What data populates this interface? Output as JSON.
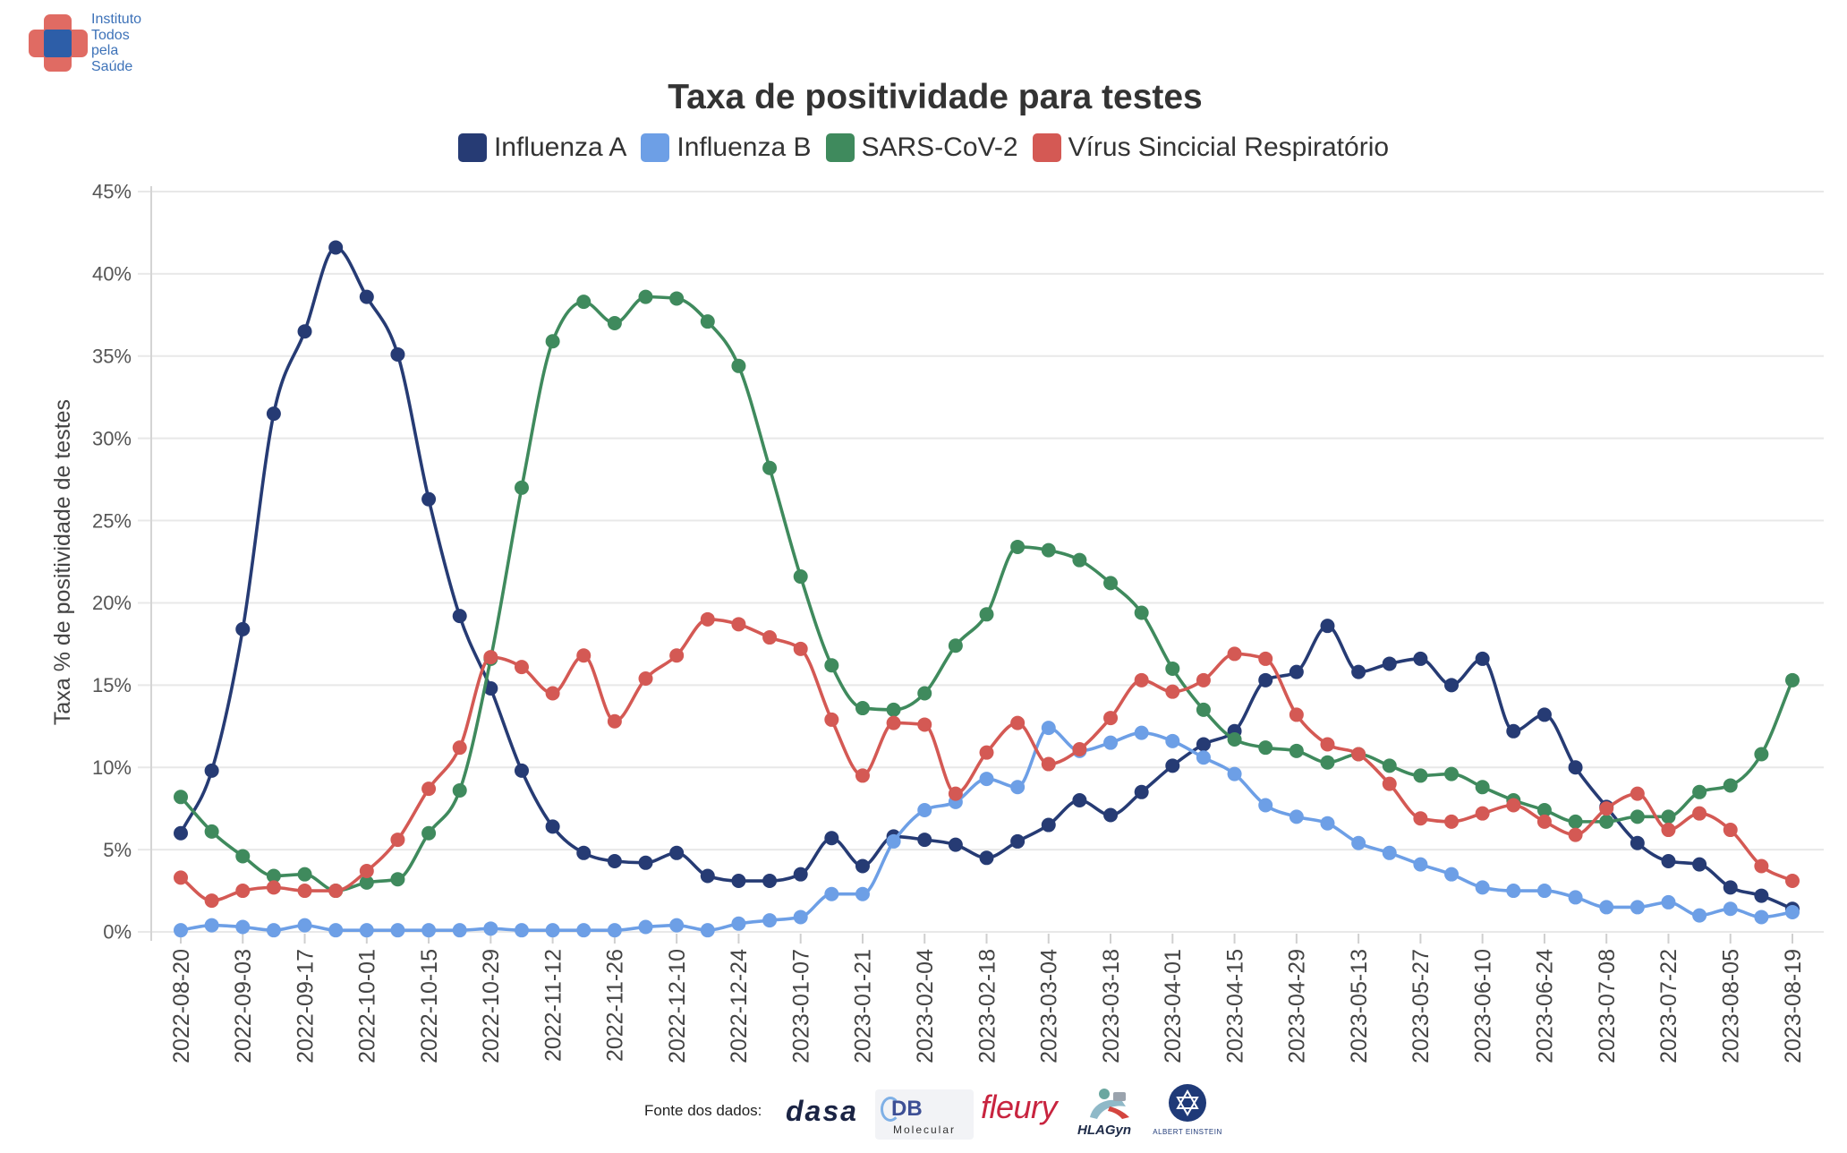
{
  "logo": {
    "lines": [
      "Instituto",
      "Todos",
      "pela",
      "Saúde"
    ],
    "colors": {
      "cross": "#e06b63",
      "center": "#2d5ea8",
      "text": "#3d72b8"
    }
  },
  "chart_data": {
    "type": "line",
    "title": "Taxa de positividade para testes",
    "xlabel": "",
    "ylabel": "Taxa % de positividade de testes",
    "ylim": [
      0,
      45
    ],
    "y_ticks": [
      0,
      5,
      10,
      15,
      20,
      25,
      30,
      35,
      40,
      45
    ],
    "y_tick_labels": [
      "0%",
      "5%",
      "10%",
      "15%",
      "20%",
      "25%",
      "30%",
      "35%",
      "40%",
      "45%"
    ],
    "grid": true,
    "legend_position": "top",
    "x": [
      "2022-08-20",
      "2022-08-27",
      "2022-09-03",
      "2022-09-10",
      "2022-09-17",
      "2022-09-24",
      "2022-10-01",
      "2022-10-08",
      "2022-10-15",
      "2022-10-22",
      "2022-10-29",
      "2022-11-05",
      "2022-11-12",
      "2022-11-19",
      "2022-11-26",
      "2022-12-03",
      "2022-12-10",
      "2022-12-17",
      "2022-12-24",
      "2022-12-31",
      "2023-01-07",
      "2023-01-14",
      "2023-01-21",
      "2023-01-28",
      "2023-02-04",
      "2023-02-11",
      "2023-02-18",
      "2023-02-25",
      "2023-03-04",
      "2023-03-11",
      "2023-03-18",
      "2023-03-25",
      "2023-04-01",
      "2023-04-08",
      "2023-04-15",
      "2023-04-22",
      "2023-04-29",
      "2023-05-06",
      "2023-05-13",
      "2023-05-20",
      "2023-05-27",
      "2023-06-03",
      "2023-06-10",
      "2023-06-17",
      "2023-06-24",
      "2023-07-01",
      "2023-07-08",
      "2023-07-15",
      "2023-07-22",
      "2023-07-29",
      "2023-08-05",
      "2023-08-12",
      "2023-08-19"
    ],
    "x_tick_labels": [
      "2022-08-20",
      "2022-09-03",
      "2022-09-17",
      "2022-10-01",
      "2022-10-15",
      "2022-10-29",
      "2022-11-12",
      "2022-11-26",
      "2022-12-10",
      "2022-12-24",
      "2023-01-07",
      "2023-01-21",
      "2023-02-04",
      "2023-02-18",
      "2023-03-04",
      "2023-03-18",
      "2023-04-01",
      "2023-04-15",
      "2023-04-29",
      "2023-05-13",
      "2023-05-27",
      "2023-06-10",
      "2023-06-24",
      "2023-07-08",
      "2023-07-22",
      "2023-08-05",
      "2023-08-19"
    ],
    "series": [
      {
        "name": "Influenza A",
        "color": "#263b74",
        "values": [
          6.0,
          9.8,
          18.4,
          31.5,
          36.5,
          41.6,
          38.6,
          35.1,
          26.3,
          19.2,
          14.8,
          9.8,
          6.4,
          4.8,
          4.3,
          4.2,
          4.8,
          3.4,
          3.1,
          3.1,
          3.5,
          5.7,
          4.0,
          5.8,
          5.6,
          5.3,
          4.5,
          5.5,
          6.5,
          8.0,
          7.1,
          8.5,
          10.1,
          11.4,
          12.2,
          15.3,
          15.8,
          18.6,
          15.8,
          16.3,
          16.6,
          15.0,
          16.6,
          12.2,
          13.2,
          10.0,
          7.6,
          5.4,
          4.3,
          4.1,
          2.7,
          2.2,
          1.4
        ]
      },
      {
        "name": "Influenza B",
        "color": "#6d9fe6",
        "values": [
          0.1,
          0.4,
          0.3,
          0.1,
          0.4,
          0.1,
          0.1,
          0.1,
          0.1,
          0.1,
          0.2,
          0.1,
          0.1,
          0.1,
          0.1,
          0.3,
          0.4,
          0.1,
          0.5,
          0.7,
          0.9,
          2.3,
          2.3,
          5.5,
          7.4,
          7.9,
          9.3,
          8.8,
          12.4,
          11.0,
          11.5,
          12.1,
          11.6,
          10.6,
          9.6,
          7.7,
          7.0,
          6.6,
          5.4,
          4.8,
          4.1,
          3.5,
          2.7,
          2.5,
          2.5,
          2.1,
          1.5,
          1.5,
          1.8,
          1.0,
          1.4,
          0.9,
          1.2
        ]
      },
      {
        "name": "SARS-CoV-2",
        "color": "#3f8a5d",
        "values": [
          8.2,
          6.1,
          4.6,
          3.4,
          3.5,
          2.5,
          3.0,
          3.2,
          6.0,
          8.6,
          16.6,
          27.0,
          35.9,
          38.3,
          37.0,
          38.6,
          38.5,
          37.1,
          34.4,
          28.2,
          21.6,
          16.2,
          13.6,
          13.5,
          14.5,
          17.4,
          19.3,
          23.4,
          23.2,
          22.6,
          21.2,
          19.4,
          16.0,
          13.5,
          11.7,
          11.2,
          11.0,
          10.3,
          10.8,
          10.1,
          9.5,
          9.6,
          8.8,
          8.0,
          7.4,
          6.7,
          6.7,
          7.0,
          7.0,
          8.5,
          8.9,
          10.8,
          15.3
        ]
      },
      {
        "name": "Vírus Sincicial Respiratório",
        "color": "#d45954",
        "values": [
          3.3,
          1.9,
          2.5,
          2.7,
          2.5,
          2.5,
          3.7,
          5.6,
          8.7,
          11.2,
          16.7,
          16.1,
          14.5,
          16.8,
          12.8,
          15.4,
          16.8,
          19.0,
          18.7,
          17.9,
          17.2,
          12.9,
          9.5,
          12.7,
          12.6,
          8.4,
          10.9,
          12.7,
          10.2,
          11.1,
          13.0,
          15.3,
          14.6,
          15.3,
          16.9,
          16.6,
          13.2,
          11.4,
          10.8,
          9.0,
          6.9,
          6.7,
          7.2,
          7.7,
          6.7,
          5.9,
          7.5,
          8.4,
          6.2,
          7.2,
          6.2,
          4.0,
          3.1
        ]
      }
    ]
  },
  "footer": {
    "source_label": "Fonte dos dados:",
    "source_logos": [
      {
        "text": "dasa"
      },
      {
        "text": "DB",
        "subtext": "Molecular"
      },
      {
        "text": "fleury"
      },
      {
        "text": "HLAGyn"
      },
      {
        "text": "ALBERT EINSTEIN"
      }
    ]
  }
}
